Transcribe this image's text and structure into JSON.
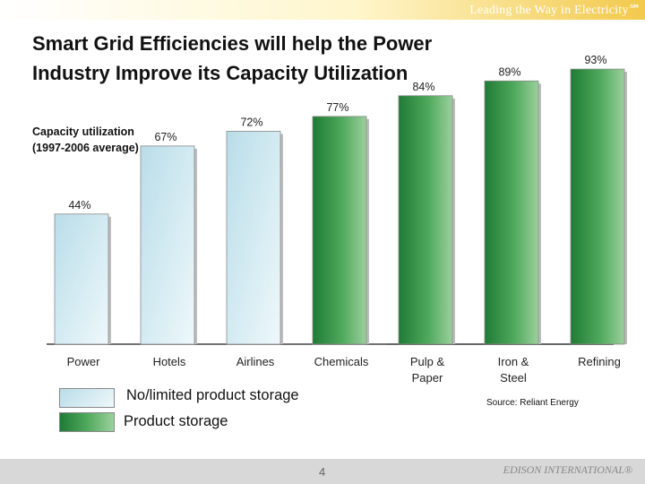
{
  "header": {
    "tagline": "Leading the Way in Electricity℠"
  },
  "title_line1": "Smart Grid Efficiencies will help the Power",
  "title_line2": "Industry Improve its Capacity Utilization",
  "capacity_label_line1": "Capacity utilization",
  "capacity_label_line2": "(1997-2006 average)",
  "chart_data": {
    "type": "bar",
    "title": "Smart Grid Efficiencies will help the Power Industry Improve its Capacity Utilization",
    "ylabel": "Capacity utilization (1997-2006 average)",
    "ylim": [
      0,
      100
    ],
    "categories": [
      "Power",
      "Hotels",
      "Airlines",
      "Chemicals",
      "Pulp & Paper",
      "Iron & Steel",
      "Refining"
    ],
    "category_lines": [
      [
        "Power"
      ],
      [
        "Hotels"
      ],
      [
        "Airlines"
      ],
      [
        "Chemicals"
      ],
      [
        "Pulp &",
        "Paper"
      ],
      [
        "Iron &",
        "Steel"
      ],
      [
        "Refining"
      ]
    ],
    "values": [
      44,
      67,
      72,
      77,
      84,
      89,
      93
    ],
    "value_labels": [
      "44%",
      "67%",
      "72%",
      "77%",
      "84%",
      "89%",
      "93%"
    ],
    "groups": [
      "No/limited product storage",
      "No/limited product storage",
      "No/limited product storage",
      "Product storage",
      "Product storage",
      "Product storage",
      "Product storage"
    ],
    "legend": [
      {
        "name": "No/limited product storage",
        "color": "#c9e6ee"
      },
      {
        "name": "Product storage",
        "color": "#3f9a4e"
      }
    ]
  },
  "source": "Source: Reliant Energy",
  "footer": {
    "page": "4",
    "brand": "EDISON INTERNATIONAL®"
  }
}
